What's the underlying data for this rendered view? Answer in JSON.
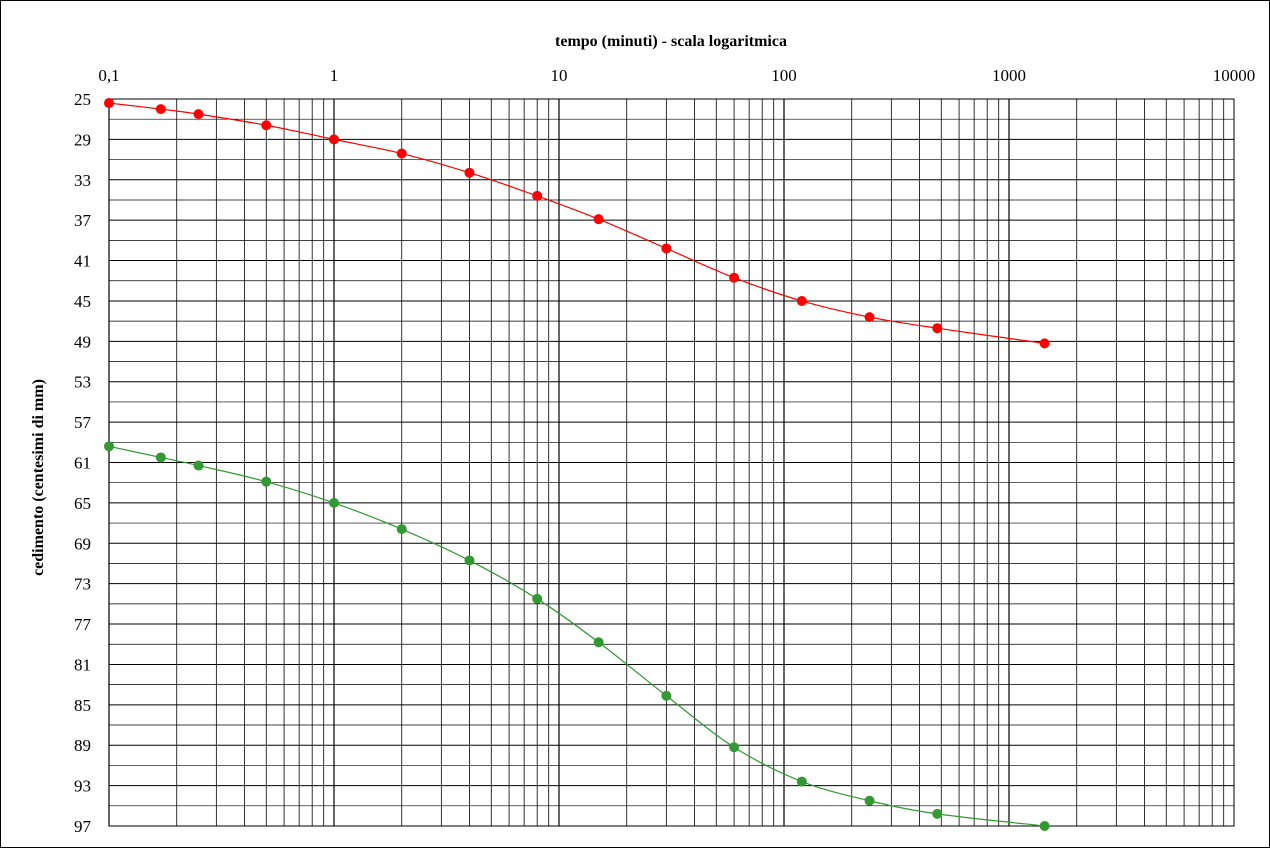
{
  "chart_data": {
    "type": "scatter",
    "title": "",
    "xlabel": "tempo (minuti) - scala logaritmica",
    "ylabel": "cedimento (centesimi di mm)",
    "x_scale": "log",
    "x_axis_position": "top",
    "y_axis_inverted": true,
    "xlim": [
      0.1,
      10000
    ],
    "ylim": [
      25,
      97
    ],
    "x_tick_labels": [
      "0,1",
      "1",
      "10",
      "100",
      "1000",
      "10000"
    ],
    "y_tick_labels": [
      "25",
      "29",
      "33",
      "37",
      "41",
      "45",
      "49",
      "53",
      "57",
      "61",
      "65",
      "69",
      "73",
      "77",
      "81",
      "85",
      "89",
      "93",
      "97"
    ],
    "grid": true,
    "legend": "none",
    "series": [
      {
        "color": "#ff0000",
        "x": [
          0.1,
          0.17,
          0.25,
          0.5,
          1,
          2,
          4,
          8,
          15,
          30,
          60,
          120,
          240,
          480,
          1440
        ],
        "y": [
          25.4,
          26.0,
          26.5,
          27.6,
          29.0,
          30.4,
          32.3,
          34.6,
          36.9,
          39.8,
          42.7,
          45.0,
          46.6,
          47.7,
          49.2
        ]
      },
      {
        "color": "#339933",
        "x": [
          0.1,
          0.17,
          0.25,
          0.5,
          1,
          2,
          4,
          8,
          15,
          30,
          60,
          120,
          240,
          480,
          1440
        ],
        "y": [
          59.4,
          60.5,
          61.3,
          62.9,
          65.0,
          67.6,
          70.7,
          74.5,
          78.8,
          84.1,
          89.2,
          92.6,
          94.5,
          95.8,
          97.0
        ]
      }
    ]
  }
}
